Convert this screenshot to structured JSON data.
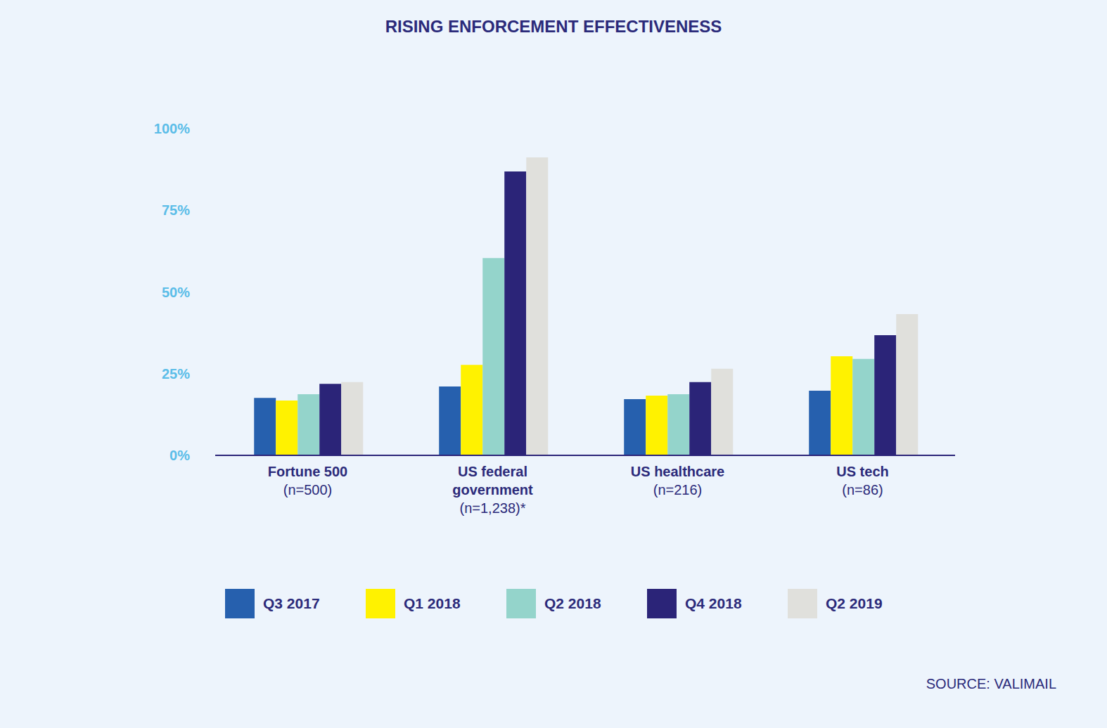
{
  "chart_data": {
    "type": "bar",
    "title": "RISING ENFORCEMENT EFFECTIVENESS",
    "source": "SOURCE: VALIMAIL",
    "categories": [
      "Fortune 500\n(n=500)",
      "US federal\ngovernment\n(n=1,238)*",
      "US healthcare\n(n=216)",
      "US tech\n(n=86)"
    ],
    "series": [
      {
        "name": "Q3 2017",
        "color": "#2660ae",
        "values": [
          17.6,
          21.1,
          17.2,
          19.8
        ]
      },
      {
        "name": "Q1 2018",
        "color": "#fff200",
        "values": [
          16.8,
          27.7,
          18.3,
          30.3
        ]
      },
      {
        "name": "Q2 2018",
        "color": "#94d4cb",
        "values": [
          18.7,
          60.4,
          18.7,
          29.5
        ]
      },
      {
        "name": "Q4 2018",
        "color": "#2b2478",
        "values": [
          21.9,
          86.9,
          22.4,
          36.8
        ]
      },
      {
        "name": "Q2 2019",
        "color": "#e0e0dc",
        "values": [
          22.4,
          91.2,
          26.5,
          43.2
        ]
      }
    ],
    "ylim": [
      0,
      100
    ],
    "yticks": [
      {
        "value": 0,
        "label": "0%"
      },
      {
        "value": 25,
        "label": "25%"
      },
      {
        "value": 50,
        "label": "50%"
      },
      {
        "value": 75,
        "label": "75%"
      },
      {
        "value": 100,
        "label": "100%"
      }
    ],
    "grid": false,
    "legend": "bottom"
  }
}
